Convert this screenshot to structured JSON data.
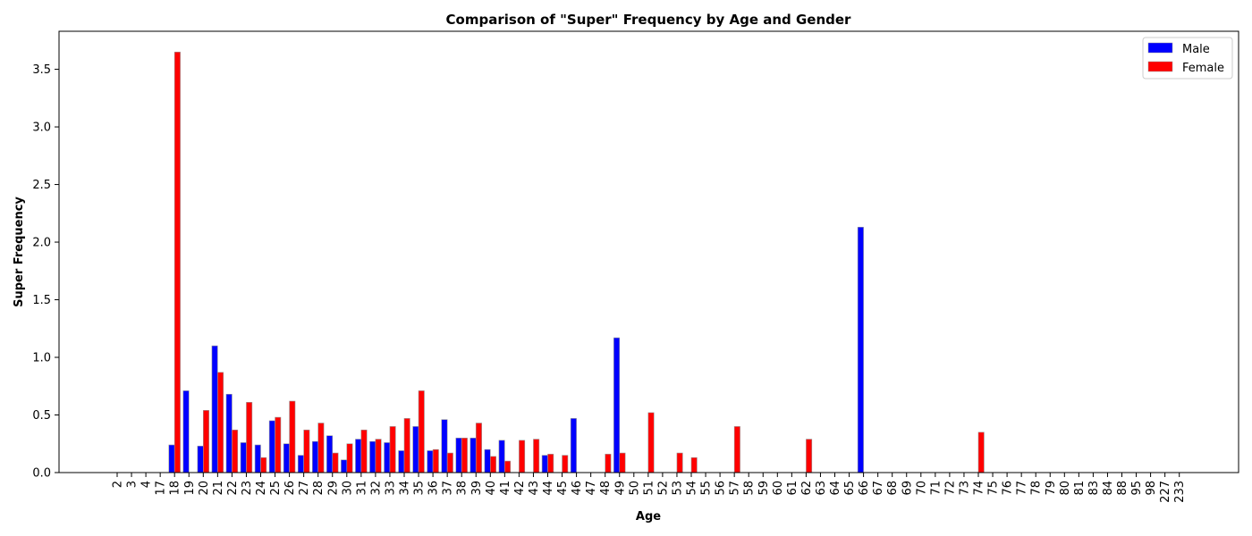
{
  "chart_data": {
    "type": "bar",
    "title": "Comparison of \"Super\" Frequency by Age and Gender",
    "xlabel": "Age",
    "ylabel": "Super Frequency",
    "ylim": [
      0,
      3.83
    ],
    "yticks": [
      0.0,
      0.5,
      1.0,
      1.5,
      2.0,
      2.5,
      3.0,
      3.5
    ],
    "ytick_labels": [
      "0.0",
      "0.5",
      "1.0",
      "1.5",
      "2.0",
      "2.5",
      "3.0",
      "3.5"
    ],
    "legend_position": "top-right",
    "grid": false,
    "categories": [
      "2",
      "3",
      "4",
      "17",
      "18",
      "19",
      "20",
      "21",
      "22",
      "23",
      "24",
      "25",
      "26",
      "27",
      "28",
      "29",
      "30",
      "31",
      "32",
      "33",
      "34",
      "35",
      "36",
      "37",
      "38",
      "39",
      "40",
      "41",
      "42",
      "43",
      "44",
      "45",
      "46",
      "47",
      "48",
      "49",
      "50",
      "51",
      "52",
      "53",
      "54",
      "55",
      "56",
      "57",
      "58",
      "59",
      "60",
      "61",
      "62",
      "63",
      "64",
      "65",
      "66",
      "67",
      "68",
      "69",
      "70",
      "71",
      "72",
      "73",
      "74",
      "75",
      "76",
      "77",
      "78",
      "79",
      "80",
      "81",
      "83",
      "84",
      "88",
      "95",
      "98",
      "227",
      "233"
    ],
    "series": [
      {
        "name": "Male",
        "color": "#0000ff",
        "values": [
          0,
          0,
          0,
          0,
          0.24,
          0.71,
          0.23,
          1.1,
          0.68,
          0.26,
          0.24,
          0.45,
          0.25,
          0.15,
          0.27,
          0.32,
          0.11,
          0.29,
          0.27,
          0.26,
          0.19,
          0.4,
          0.19,
          0.46,
          0.3,
          0.3,
          0.2,
          0.28,
          0,
          0,
          0.15,
          0,
          0.47,
          0,
          0,
          1.17,
          0,
          0,
          0,
          0,
          0,
          0,
          0,
          0,
          0,
          0,
          0,
          0,
          0,
          0,
          0,
          0,
          2.13,
          0,
          0,
          0,
          0,
          0,
          0,
          0,
          0,
          0,
          0,
          0,
          0,
          0,
          0,
          0,
          0,
          0,
          0,
          0,
          0,
          0,
          0
        ]
      },
      {
        "name": "Female",
        "color": "#ff0000",
        "values": [
          0,
          0,
          0,
          0,
          3.65,
          0,
          0.54,
          0.87,
          0.37,
          0.61,
          0.13,
          0.48,
          0.62,
          0.37,
          0.43,
          0.17,
          0.25,
          0.37,
          0.29,
          0.4,
          0.47,
          0.71,
          0.2,
          0.17,
          0.3,
          0.43,
          0.14,
          0.1,
          0.28,
          0.29,
          0.16,
          0.15,
          0,
          0,
          0.16,
          0.17,
          0,
          0.52,
          0,
          0.17,
          0.13,
          0,
          0,
          0.4,
          0,
          0,
          0,
          0,
          0.29,
          0,
          0,
          0,
          0,
          0,
          0,
          0,
          0,
          0,
          0,
          0,
          0.35,
          0,
          0,
          0,
          0,
          0,
          0,
          0,
          0,
          0,
          0,
          0,
          0,
          0,
          0
        ]
      }
    ]
  }
}
